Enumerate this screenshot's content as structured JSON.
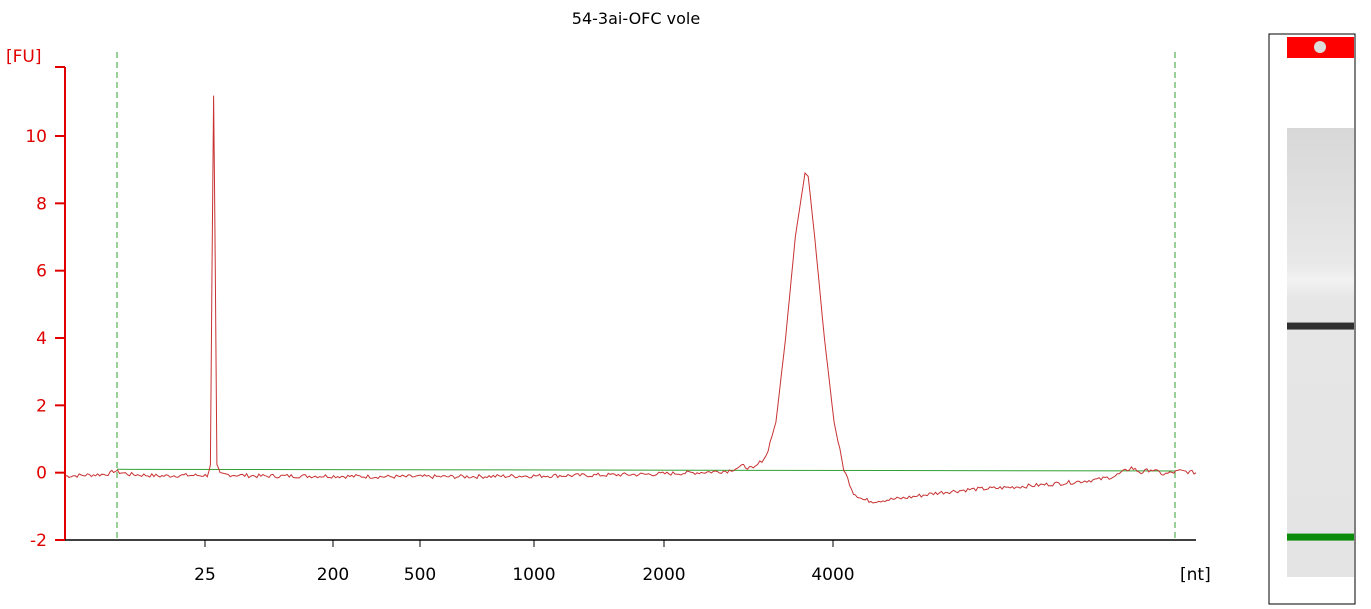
{
  "chart_data": {
    "type": "line",
    "title": "54-3ai-OFC vole",
    "ylabel": "[FU]",
    "xlabel": "[nt]",
    "ylim": [
      -2,
      12
    ],
    "y_ticks": [
      -2,
      0,
      2,
      4,
      6,
      8,
      10
    ],
    "x_tick_labels": [
      "25",
      "200",
      "500",
      "1000",
      "2000",
      "4000"
    ],
    "grid": false,
    "colors": {
      "axis": "#e00000",
      "trace": "#c83232",
      "baseline": "#32a032",
      "markers": "#32a032"
    },
    "series": [
      {
        "values": [
          [
            0.0,
            -0.1
          ],
          [
            0.05,
            -0.08
          ],
          [
            0.12,
            -0.05
          ],
          [
            0.14,
            -0.02
          ],
          [
            0.15,
            0.05
          ],
          [
            0.2,
            -0.05
          ],
          [
            0.3,
            -0.1
          ],
          [
            0.35,
            -0.08
          ],
          [
            0.44,
            -0.08
          ],
          [
            0.45,
            0.2
          ],
          [
            0.455,
            6.0
          ],
          [
            0.46,
            11.2
          ],
          [
            0.465,
            6.0
          ],
          [
            0.47,
            0.2
          ],
          [
            0.48,
            -0.05
          ],
          [
            0.6,
            -0.1
          ],
          [
            0.8,
            -0.1
          ],
          [
            1.0,
            -0.12
          ],
          [
            1.2,
            -0.12
          ],
          [
            1.4,
            -0.1
          ],
          [
            1.6,
            -0.08
          ],
          [
            1.8,
            -0.05
          ],
          [
            1.95,
            0.0
          ],
          [
            2.05,
            0.05
          ],
          [
            2.1,
            0.2
          ],
          [
            2.13,
            0.1
          ],
          [
            2.17,
            0.5
          ],
          [
            2.2,
            1.5
          ],
          [
            2.23,
            4.0
          ],
          [
            2.26,
            7.0
          ],
          [
            2.29,
            8.9
          ],
          [
            2.3,
            8.8
          ],
          [
            2.32,
            7.0
          ],
          [
            2.35,
            4.0
          ],
          [
            2.38,
            1.5
          ],
          [
            2.41,
            0.1
          ],
          [
            2.44,
            -0.6
          ],
          [
            2.47,
            -0.8
          ],
          [
            2.5,
            -0.85
          ],
          [
            2.6,
            -0.75
          ],
          [
            2.7,
            -0.6
          ],
          [
            2.8,
            -0.5
          ],
          [
            2.9,
            -0.45
          ],
          [
            3.0,
            -0.38
          ],
          [
            3.1,
            -0.3
          ],
          [
            3.2,
            -0.2
          ],
          [
            3.25,
            -0.1
          ],
          [
            3.3,
            0.15
          ],
          [
            3.33,
            0.0
          ],
          [
            3.36,
            0.1
          ],
          [
            3.4,
            -0.05
          ],
          [
            3.45,
            0.05
          ],
          [
            3.5,
            0.0
          ]
        ]
      }
    ]
  },
  "gel_lane": {
    "bands": [
      {
        "position": 0.44,
        "intensity": 1.0,
        "color": "#303030"
      },
      {
        "position": 0.91,
        "intensity": 1.0,
        "color": "#0a8c0a"
      }
    ]
  }
}
